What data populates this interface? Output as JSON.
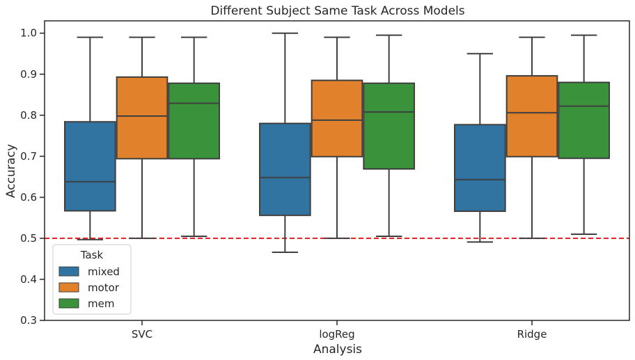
{
  "chart_data": {
    "type": "box",
    "title": "Different Subject Same Task Across Models",
    "xlabel": "Analysis",
    "ylabel": "Accuracy",
    "ylim": [
      0.3,
      1.03
    ],
    "yticks": [
      "0.3",
      "0.4",
      "0.5",
      "0.6",
      "0.7",
      "0.8",
      "0.9",
      "1.0"
    ],
    "categories": [
      "SVC",
      "logReg",
      "Ridge"
    ],
    "legend": {
      "title": "Task",
      "position": "lower-left"
    },
    "reference_line": {
      "value": 0.5,
      "color": "#e31a1c",
      "style": "dashed"
    },
    "series": [
      {
        "name": "mixed",
        "color": "#3274a1",
        "boxes": [
          {
            "whisker_low": 0.497,
            "q1": 0.567,
            "median": 0.638,
            "q3": 0.784,
            "whisker_high": 0.99
          },
          {
            "whisker_low": 0.466,
            "q1": 0.556,
            "median": 0.648,
            "q3": 0.78,
            "whisker_high": 1.0
          },
          {
            "whisker_low": 0.491,
            "q1": 0.566,
            "median": 0.643,
            "q3": 0.777,
            "whisker_high": 0.95
          }
        ]
      },
      {
        "name": "motor",
        "color": "#e1812c",
        "boxes": [
          {
            "whisker_low": 0.5,
            "q1": 0.694,
            "median": 0.798,
            "q3": 0.893,
            "whisker_high": 0.99
          },
          {
            "whisker_low": 0.5,
            "q1": 0.699,
            "median": 0.788,
            "q3": 0.885,
            "whisker_high": 0.99
          },
          {
            "whisker_low": 0.5,
            "q1": 0.699,
            "median": 0.806,
            "q3": 0.896,
            "whisker_high": 0.99
          }
        ]
      },
      {
        "name": "mem",
        "color": "#3a923a",
        "boxes": [
          {
            "whisker_low": 0.505,
            "q1": 0.694,
            "median": 0.829,
            "q3": 0.878,
            "whisker_high": 0.99
          },
          {
            "whisker_low": 0.505,
            "q1": 0.669,
            "median": 0.808,
            "q3": 0.878,
            "whisker_high": 0.995
          },
          {
            "whisker_low": 0.51,
            "q1": 0.695,
            "median": 0.822,
            "q3": 0.88,
            "whisker_high": 0.995
          }
        ]
      }
    ]
  }
}
